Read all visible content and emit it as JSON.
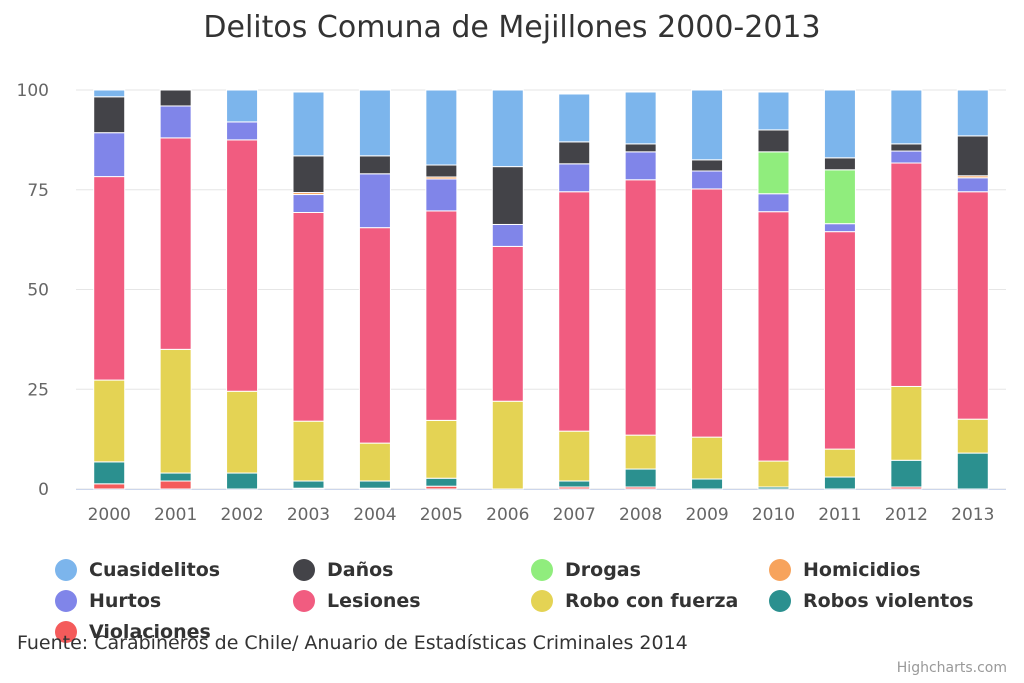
{
  "chart_data": {
    "type": "bar",
    "stacked": true,
    "title": "Delitos Comuna de Mejillones 2000-2013",
    "categories": [
      "2000",
      "2001",
      "2002",
      "2003",
      "2004",
      "2005",
      "2006",
      "2007",
      "2008",
      "2009",
      "2010",
      "2011",
      "2012",
      "2013"
    ],
    "ylim": [
      0,
      100
    ],
    "yticks": [
      0,
      25,
      50,
      75,
      100
    ],
    "grid": true,
    "legend_position": "bottom",
    "series": [
      {
        "name": "Cuasidelitos",
        "color": "#7cb5ec",
        "values": [
          1.7,
          0,
          8,
          16,
          16.5,
          18.8,
          19.2,
          12,
          13,
          17.5,
          9.5,
          17,
          13.5,
          11.5
        ]
      },
      {
        "name": "Daños",
        "color": "#434348",
        "values": [
          9,
          4,
          0,
          9.2,
          4.5,
          3,
          14.5,
          5.5,
          2,
          2.8,
          5.5,
          3,
          1.8,
          10
        ]
      },
      {
        "name": "Drogas",
        "color": "#90ed7d",
        "values": [
          0,
          0,
          0,
          0,
          0,
          0,
          0,
          0,
          0,
          0,
          10.5,
          13.5,
          0,
          0
        ]
      },
      {
        "name": "Homicidios",
        "color": "#f7a35c",
        "values": [
          0,
          0,
          0,
          0.5,
          0,
          0.5,
          0,
          0,
          0,
          0,
          0,
          0,
          0,
          0.5
        ]
      },
      {
        "name": "Hurtos",
        "color": "#8085e9",
        "values": [
          11,
          8,
          4.5,
          4.5,
          13.5,
          8,
          5.5,
          7,
          7,
          4.5,
          4.5,
          2,
          3,
          3.5
        ]
      },
      {
        "name": "Lesiones",
        "color": "#f15c80",
        "values": [
          51,
          53,
          63,
          52.3,
          54,
          52.5,
          38.8,
          60,
          64,
          62.2,
          62.5,
          54.5,
          56,
          57
        ]
      },
      {
        "name": "Robo con fuerza",
        "color": "#e4d354",
        "values": [
          20.5,
          31,
          20.5,
          15,
          9.5,
          14.5,
          22,
          12.5,
          8.5,
          10.5,
          6.5,
          7,
          18.5,
          8.5
        ]
      },
      {
        "name": "Robos violentos",
        "color": "#2b908f",
        "values": [
          5.5,
          2,
          4,
          1.8,
          1.8,
          2,
          0,
          1.5,
          4.5,
          2.5,
          0.5,
          3,
          6.7,
          9
        ]
      },
      {
        "name": "Violaciones",
        "color": "#f45b5b",
        "values": [
          1.3,
          2,
          0,
          0.2,
          0.2,
          0.7,
          0,
          0.5,
          0.5,
          0,
          0,
          0,
          0.5,
          0
        ]
      }
    ]
  },
  "source_note": "Fuente: Carabineros de Chile/ Anuario de Estadísticas Criminales 2014",
  "credits": "Highcharts.com"
}
